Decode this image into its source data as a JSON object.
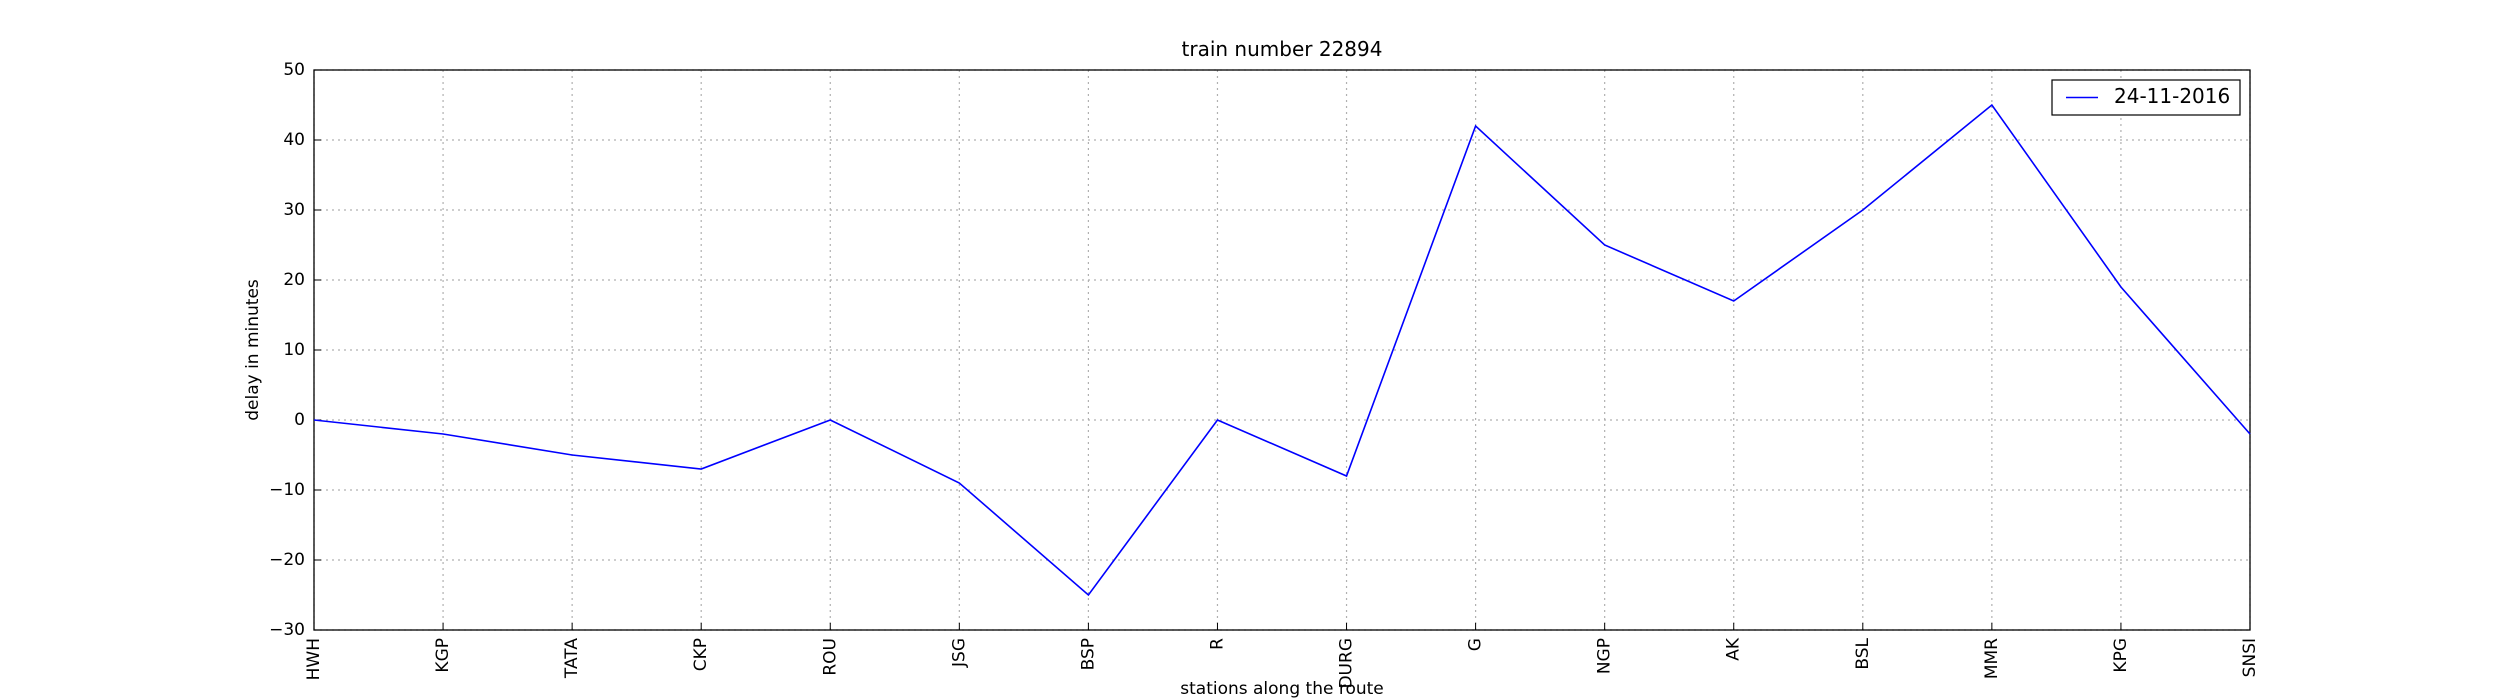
{
  "chart_data": {
    "type": "line",
    "title": "train number 22894",
    "xlabel": "stations along the route",
    "ylabel": "delay in minutes",
    "categories": [
      "HWH",
      "KGP",
      "TATA",
      "CKP",
      "ROU",
      "JSG",
      "BSP",
      "R",
      "DURG",
      "G",
      "NGP",
      "AK",
      "BSL",
      "MMR",
      "KPG",
      "SNSI"
    ],
    "series": [
      {
        "name": "24-11-2016",
        "color": "#0000ff",
        "values": [
          0,
          -2,
          -5,
          -7,
          0,
          -9,
          -25,
          0,
          -8,
          42,
          25,
          17,
          30,
          45,
          19,
          -2
        ]
      }
    ],
    "ylim": [
      -30,
      50
    ],
    "yticks": [
      {
        "value": -30,
        "label": "−30"
      },
      {
        "value": -20,
        "label": "−20"
      },
      {
        "value": -10,
        "label": "−10"
      },
      0,
      10,
      20,
      30,
      40,
      50
    ],
    "grid": true,
    "legend": "upper right"
  }
}
